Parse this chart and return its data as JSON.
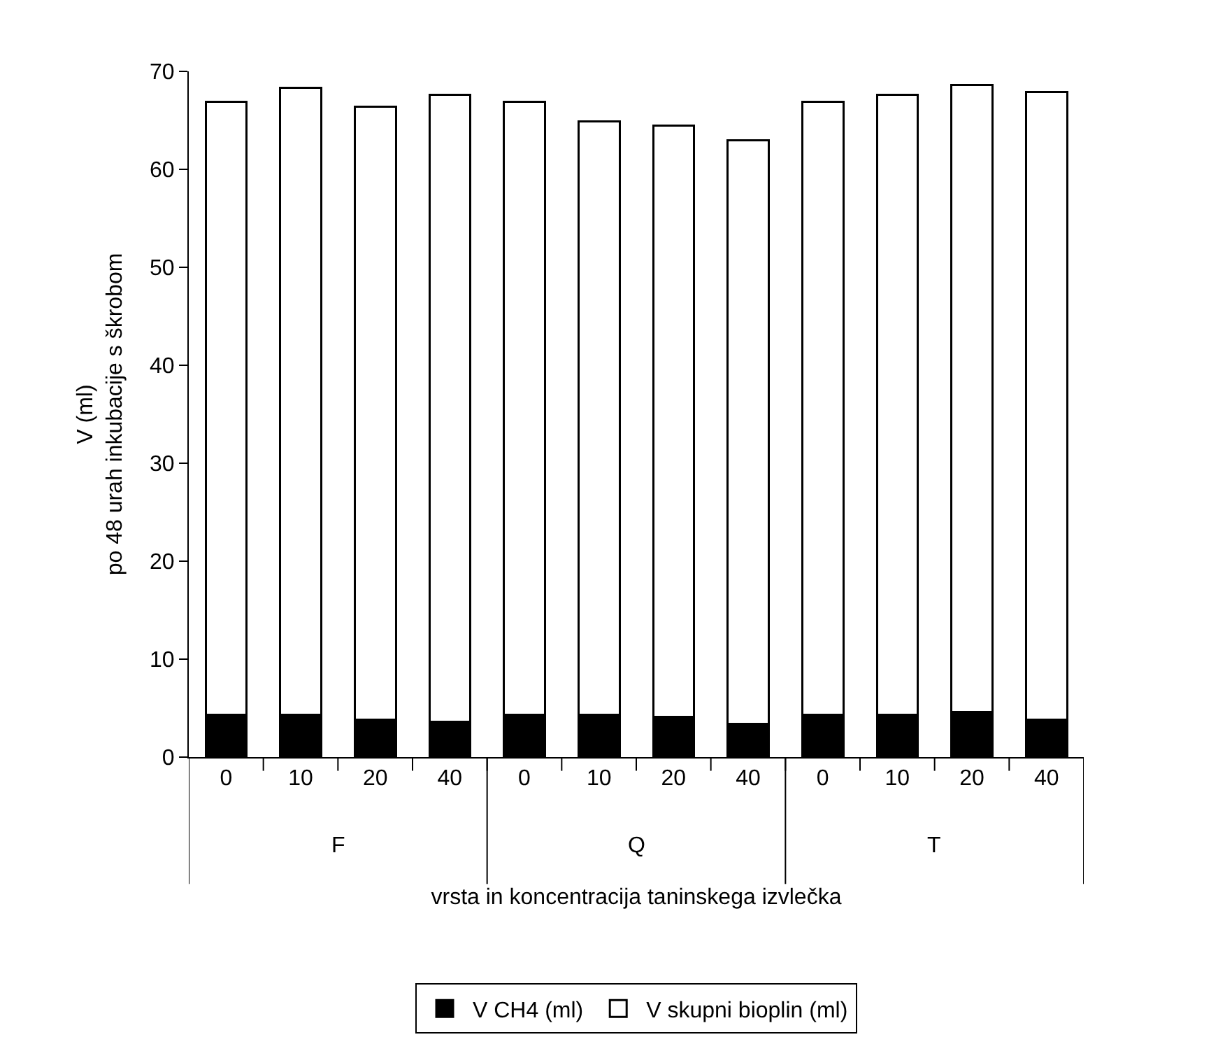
{
  "chart_data": {
    "type": "bar",
    "stacked": true,
    "categories": [
      "0",
      "10",
      "20",
      "40",
      "0",
      "10",
      "20",
      "40",
      "0",
      "10",
      "20",
      "40"
    ],
    "series": [
      {
        "name": "V CH4 (ml)",
        "color": "#000000",
        "values": [
          4.3,
          4.3,
          3.8,
          3.6,
          4.3,
          4.3,
          4.1,
          3.4,
          4.3,
          4.3,
          4.6,
          3.8
        ]
      },
      {
        "name": "V skupni bioplin (ml)",
        "color": "#ffffff",
        "values": [
          62.6,
          64.0,
          62.6,
          64.0,
          62.6,
          60.6,
          60.4,
          59.6,
          62.6,
          63.3,
          64.0,
          64.1
        ]
      }
    ],
    "ylabel": "V (ml)\npo 48 urah inkubacije s škrobom",
    "xlabel": "vrsta in koncentracija taninskega izvlečka",
    "annotations": [
      "F",
      "Q",
      "T"
    ],
    "ylim": [
      0,
      70
    ],
    "yticks": [
      0,
      10,
      20,
      30,
      40,
      50,
      60,
      70
    ],
    "legend": "bottom"
  }
}
